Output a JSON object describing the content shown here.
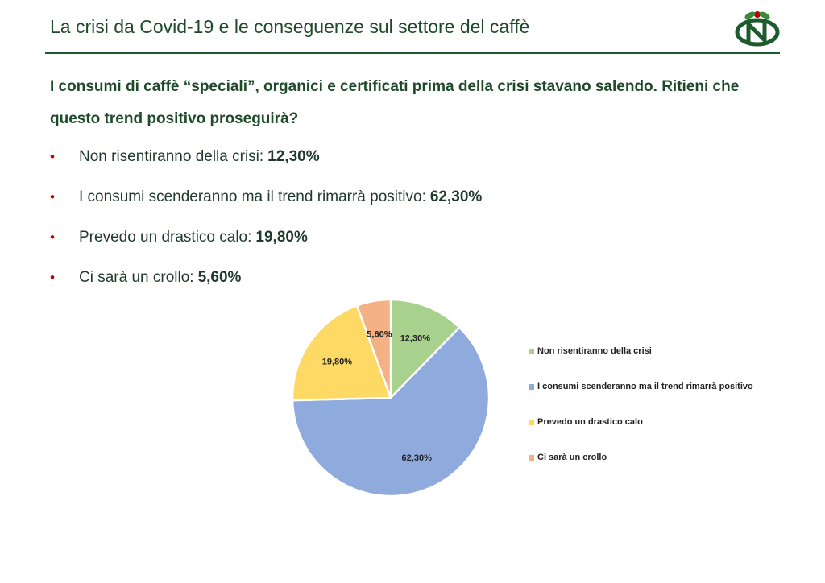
{
  "header": {
    "title": "La crisi da Covid-19 e le conseguenze sul settore del caffè"
  },
  "question": "I consumi di caffè “speciali”, organici e certificati prima della crisi stavano salendo. Ritieni che questo trend positivo proseguirà?",
  "bullets": [
    {
      "text": "Non risentiranno della crisi:",
      "value": "12,30%"
    },
    {
      "text": "I consumi scenderanno ma il trend rimarrà positivo:",
      "value": "62,30%"
    },
    {
      "text": "Prevedo un drastico calo:",
      "value": "19,80%"
    },
    {
      "text": "Ci sarà un crollo:",
      "value": "5,60%"
    }
  ],
  "chart_data": {
    "type": "pie",
    "categories": [
      "Non risentiranno della crisi",
      "I consumi scenderanno ma il trend rimarrà positivo",
      "Prevedo un drastico calo",
      "Ci sarà un crollo"
    ],
    "values": [
      12.3,
      62.3,
      19.8,
      5.6
    ],
    "labels": [
      "12,30%",
      "62,30%",
      "19,80%",
      "5,60%"
    ],
    "colors": [
      "#a9d18e",
      "#8faadc",
      "#ffd966",
      "#f4b183"
    ],
    "legend_position": "right"
  }
}
